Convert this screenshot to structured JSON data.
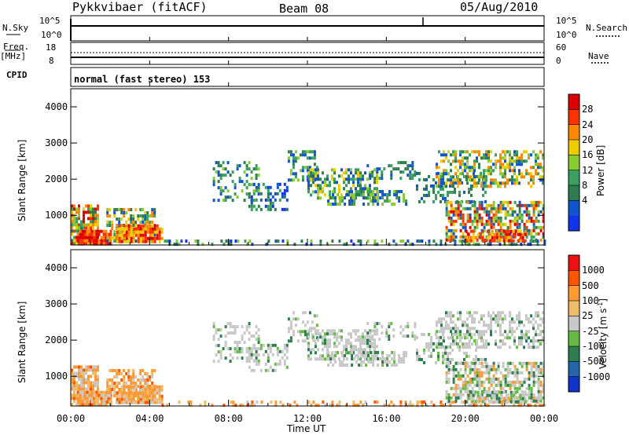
{
  "header": {
    "station": "Pykkvibaer (fitACF)",
    "beam": "Beam 08",
    "date": "05/Aug/2010"
  },
  "strip_panels": {
    "nsky": {
      "label": "N.Sky",
      "ticks": [
        "10^5",
        "10^0"
      ]
    },
    "nsearch": {
      "label": "N.Search",
      "ticks": [
        "10^5",
        "10^0"
      ]
    },
    "freq": {
      "label": "Freq.",
      "unit": "[MHz]",
      "ticks": [
        "18",
        "8"
      ]
    },
    "nave": {
      "label": "Nave",
      "ticks": [
        "60",
        "0"
      ]
    },
    "cpid": {
      "label": "CPID",
      "text": "normal (fast stereo) 153"
    }
  },
  "chart_data": [
    {
      "type": "heatmap",
      "panel": "power",
      "ylabel": "Slant Range [km]",
      "xlabel": "",
      "ylim": [
        180,
        4500
      ],
      "yticks": [
        "1000",
        "2000",
        "3000",
        "4000"
      ],
      "xticks": [
        "00:00",
        "04:00",
        "08:00",
        "12:00",
        "16:00",
        "20:00",
        "00:00"
      ],
      "colorbar": {
        "label": "Power [dB]",
        "ticks": [
          "28",
          "24",
          "20",
          "16",
          "12",
          "8",
          "4"
        ],
        "colors": [
          "#1133ee",
          "#1155cc",
          "#2e7d4e",
          "#3b9f5f",
          "#88cc33",
          "#eecc00",
          "#ff8800",
          "#ff3300",
          "#dd0000"
        ]
      }
    },
    {
      "type": "heatmap",
      "panel": "velocity",
      "ylabel": "Slant Range [km]",
      "xlabel": "Time UT",
      "ylim": [
        180,
        4500
      ],
      "yticks": [
        "1000",
        "2000",
        "3000",
        "4000"
      ],
      "xticks": [
        "00:00",
        "04:00",
        "08:00",
        "12:00",
        "16:00",
        "20:00",
        "00:00"
      ],
      "colorbar": {
        "label": "Velocity [m s",
        "label_sup": "-1",
        "label_end": "]",
        "ticks": [
          "1000",
          "500",
          "100",
          "25",
          "-25",
          "-100",
          "-500",
          "-1000"
        ],
        "colors": [
          "#1133cc",
          "#2266aa",
          "#2e7d4e",
          "#66bb44",
          "#c8c8c8",
          "#eebb66",
          "#ff9933",
          "#ff5500",
          "#ee1111"
        ]
      }
    }
  ]
}
